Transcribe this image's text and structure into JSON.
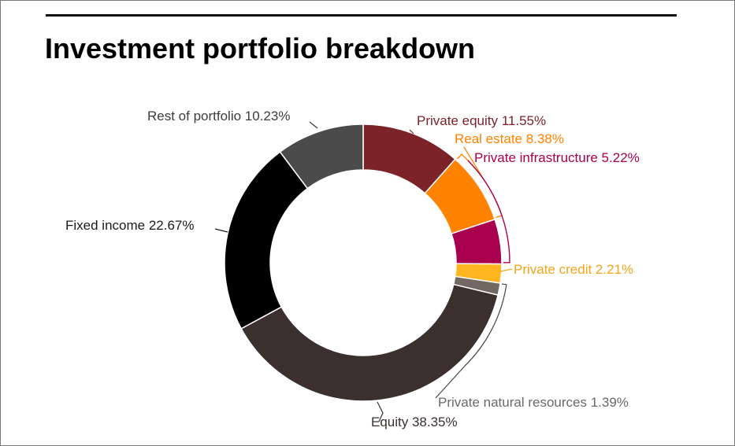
{
  "chart_data": {
    "type": "pie",
    "title": "Investment portfolio breakdown",
    "slices": [
      {
        "label": "Private equity 11.55%",
        "value": 11.55,
        "color": "#7b2329",
        "label_color": "#7b2329"
      },
      {
        "label": "Real estate 8.38%",
        "value": 8.38,
        "color": "#ff8200",
        "label_color": "#ff8200"
      },
      {
        "label": "Private infrastructure 5.22%",
        "value": 5.22,
        "color": "#a8004f",
        "label_color": "#a8004f"
      },
      {
        "label": "Private credit 2.21%",
        "value": 2.21,
        "color": "#ffb51f",
        "label_color": "#f3a51a"
      },
      {
        "label": "Private natural resources 1.39%",
        "value": 1.39,
        "color": "#726861",
        "label_color": "#6a6a6a"
      },
      {
        "label": "Equity 38.35%",
        "value": 38.35,
        "color": "#3b302e",
        "label_color": "#3b302e"
      },
      {
        "label": "Fixed income 22.67%",
        "value": 22.67,
        "color": "#000000",
        "label_color": "#1a1a1a"
      },
      {
        "label": "Rest of portfolio 10.23%",
        "value": 10.23,
        "color": "#4b4b4b",
        "label_color": "#3c3c3c"
      }
    ]
  }
}
